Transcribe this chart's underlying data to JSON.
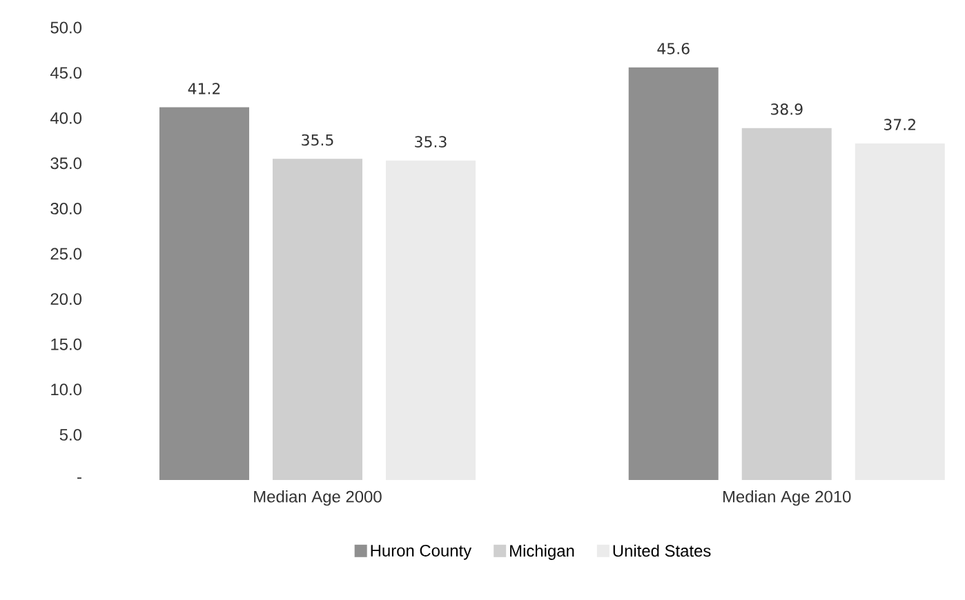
{
  "chart_data": {
    "type": "bar",
    "categories": [
      "Median Age 2000",
      "Median Age 2010"
    ],
    "series": [
      {
        "name": "Huron County",
        "color": "#8f8f8f",
        "values": [
          41.2,
          45.6
        ],
        "value_labels": [
          "41.2",
          "45.6"
        ]
      },
      {
        "name": "Michigan",
        "color": "#cfcfcf",
        "values": [
          35.5,
          38.9
        ],
        "value_labels": [
          "35.5",
          "38.9"
        ]
      },
      {
        "name": "United States",
        "color": "#ebebeb",
        "values": [
          35.3,
          37.2
        ],
        "value_labels": [
          "35.3",
          "37.2"
        ]
      }
    ],
    "ylim": [
      0,
      50
    ],
    "yticks": [
      {
        "value": 0,
        "label": "-"
      },
      {
        "value": 5,
        "label": "5.0"
      },
      {
        "value": 10,
        "label": "10.0"
      },
      {
        "value": 15,
        "label": "15.0"
      },
      {
        "value": 20,
        "label": "20.0"
      },
      {
        "value": 25,
        "label": "25.0"
      },
      {
        "value": 30,
        "label": "30.0"
      },
      {
        "value": 35,
        "label": "35.0"
      },
      {
        "value": 40,
        "label": "40.0"
      },
      {
        "value": 45,
        "label": "45.0"
      },
      {
        "value": 50,
        "label": "50.0"
      }
    ],
    "legend": "bottom",
    "grid": false
  }
}
